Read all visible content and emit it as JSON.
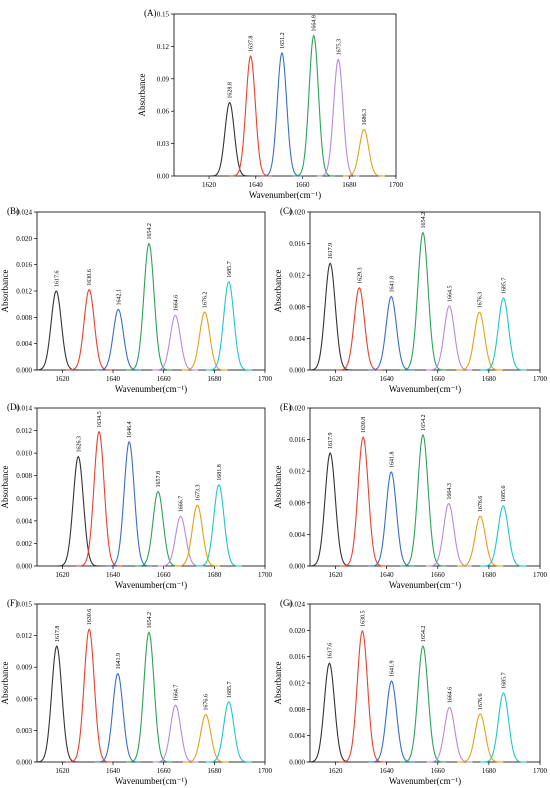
{
  "chart_data": [
    {
      "panel": "(A)",
      "type": "line",
      "xlabel": "Wavenumber(cm⁻¹)",
      "ylabel": "Absorbance",
      "xlim": [
        1605,
        1700
      ],
      "ylim": [
        0,
        0.15
      ],
      "xticks": [
        1620,
        1640,
        1660,
        1680,
        1700
      ],
      "yticks": [
        0,
        0.03,
        0.06,
        0.09,
        0.12,
        0.15
      ],
      "ytick_labels": [
        "0.00",
        "0.03",
        "0.06",
        "0.09",
        "0.12",
        "0.15"
      ],
      "peaks": [
        {
          "label": "1628.8",
          "center": 1628.8,
          "height": 0.068,
          "color": "#333333"
        },
        {
          "label": "1637.8",
          "center": 1637.8,
          "height": 0.111,
          "color": "#e8412f"
        },
        {
          "label": "1651.2",
          "center": 1651.2,
          "height": 0.114,
          "color": "#3a6fc4"
        },
        {
          "label": "1664.8",
          "center": 1664.8,
          "height": 0.13,
          "color": "#2ea25a"
        },
        {
          "label": "1675.3",
          "center": 1675.3,
          "height": 0.108,
          "color": "#b98ad8"
        },
        {
          "label": "1686.3",
          "center": 1686.3,
          "height": 0.043,
          "color": "#e2a218"
        }
      ]
    },
    {
      "panel": "(B)",
      "type": "line",
      "xlabel": "Wavenumber(cm⁻¹)",
      "ylabel": "Absorbance",
      "xlim": [
        1610,
        1700
      ],
      "ylim": [
        0,
        0.024
      ],
      "xticks": [
        1620,
        1640,
        1660,
        1680,
        1700
      ],
      "yticks": [
        0,
        0.004,
        0.008,
        0.012,
        0.016,
        0.02,
        0.024
      ],
      "ytick_labels": [
        "0.000",
        "0.004",
        "0.008",
        "0.012",
        "0.016",
        "0.020",
        "0.024"
      ],
      "peaks": [
        {
          "label": "1617.6",
          "center": 1617.6,
          "height": 0.012,
          "color": "#333333"
        },
        {
          "label": "1630.6",
          "center": 1630.6,
          "height": 0.0122,
          "color": "#e8412f"
        },
        {
          "label": "1642.1",
          "center": 1642.1,
          "height": 0.0092,
          "color": "#3a6fc4"
        },
        {
          "label": "1654.2",
          "center": 1654.2,
          "height": 0.0192,
          "color": "#2ea25a"
        },
        {
          "label": "1664.6",
          "center": 1664.6,
          "height": 0.0083,
          "color": "#b98ad8"
        },
        {
          "label": "1676.2",
          "center": 1676.2,
          "height": 0.0088,
          "color": "#e2a218"
        },
        {
          "label": "1685.7",
          "center": 1685.7,
          "height": 0.0134,
          "color": "#22c7c7"
        }
      ]
    },
    {
      "panel": "(C)",
      "type": "line",
      "xlabel": "Wavenumber(cm⁻¹)",
      "ylabel": "Absorbance",
      "xlim": [
        1610,
        1700
      ],
      "ylim": [
        0,
        0.02
      ],
      "xticks": [
        1620,
        1640,
        1660,
        1680,
        1700
      ],
      "yticks": [
        0,
        0.004,
        0.008,
        0.012,
        0.016,
        0.02
      ],
      "ytick_labels": [
        "0.000",
        "0.004",
        "0.008",
        "0.012",
        "0.016",
        "0.020"
      ],
      "peaks": [
        {
          "label": "1617.9",
          "center": 1617.9,
          "height": 0.0135,
          "color": "#333333"
        },
        {
          "label": "1629.3",
          "center": 1629.3,
          "height": 0.0104,
          "color": "#e8412f"
        },
        {
          "label": "1641.8",
          "center": 1641.8,
          "height": 0.0093,
          "color": "#3a6fc4"
        },
        {
          "label": "1654.2",
          "center": 1654.2,
          "height": 0.0174,
          "color": "#2ea25a"
        },
        {
          "label": "1664.5",
          "center": 1664.5,
          "height": 0.0081,
          "color": "#b98ad8"
        },
        {
          "label": "1676.3",
          "center": 1676.3,
          "height": 0.0073,
          "color": "#e2a218"
        },
        {
          "label": "1685.7",
          "center": 1685.7,
          "height": 0.0091,
          "color": "#22c7c7"
        }
      ]
    },
    {
      "panel": "(D)",
      "type": "line",
      "xlabel": "Wavenumber(cm⁻¹)",
      "ylabel": "Absorbance",
      "xlim": [
        1610,
        1700
      ],
      "ylim": [
        0,
        0.014
      ],
      "xticks": [
        1620,
        1640,
        1660,
        1680,
        1700
      ],
      "yticks": [
        0,
        0.002,
        0.004,
        0.006,
        0.008,
        0.01,
        0.012,
        0.014
      ],
      "ytick_labels": [
        "0.000",
        "0.002",
        "0.004",
        "0.006",
        "0.008",
        "0.010",
        "0.012",
        "0.014"
      ],
      "peaks": [
        {
          "label": "1626.3",
          "center": 1626.3,
          "height": 0.0097,
          "color": "#333333"
        },
        {
          "label": "1634.5",
          "center": 1634.5,
          "height": 0.0119,
          "color": "#e8412f"
        },
        {
          "label": "1646.4",
          "center": 1646.4,
          "height": 0.011,
          "color": "#3a6fc4"
        },
        {
          "label": "1657.8",
          "center": 1657.8,
          "height": 0.0066,
          "color": "#2ea25a"
        },
        {
          "label": "1666.7",
          "center": 1666.7,
          "height": 0.0044,
          "color": "#b98ad8"
        },
        {
          "label": "1673.3",
          "center": 1673.3,
          "height": 0.0054,
          "color": "#e2a218"
        },
        {
          "label": "1681.8",
          "center": 1681.8,
          "height": 0.0072,
          "color": "#22c7c7"
        }
      ]
    },
    {
      "panel": "(E)",
      "type": "line",
      "xlabel": "Wavenumber(cm⁻¹)",
      "ylabel": "Absorbance",
      "xlim": [
        1610,
        1700
      ],
      "ylim": [
        0,
        0.02
      ],
      "xticks": [
        1620,
        1640,
        1660,
        1680,
        1700
      ],
      "yticks": [
        0,
        0.004,
        0.008,
        0.012,
        0.016,
        0.02
      ],
      "ytick_labels": [
        "0.000",
        "0.004",
        "0.008",
        "0.012",
        "0.016",
        "0.020"
      ],
      "peaks": [
        {
          "label": "1617.9",
          "center": 1617.9,
          "height": 0.0143,
          "color": "#333333"
        },
        {
          "label": "1630.8",
          "center": 1630.8,
          "height": 0.0163,
          "color": "#e8412f"
        },
        {
          "label": "1641.8",
          "center": 1641.8,
          "height": 0.0119,
          "color": "#3a6fc4"
        },
        {
          "label": "1654.2",
          "center": 1654.2,
          "height": 0.0166,
          "color": "#2ea25a"
        },
        {
          "label": "1664.3",
          "center": 1664.3,
          "height": 0.0079,
          "color": "#b98ad8"
        },
        {
          "label": "1676.6",
          "center": 1676.6,
          "height": 0.0063,
          "color": "#e2a218"
        },
        {
          "label": "1685.6",
          "center": 1685.6,
          "height": 0.0076,
          "color": "#22c7c7"
        }
      ]
    },
    {
      "panel": "(F)",
      "type": "line",
      "xlabel": "Wavenumber(cm⁻¹)",
      "ylabel": "Absorbance",
      "xlim": [
        1610,
        1700
      ],
      "ylim": [
        0,
        0.015
      ],
      "xticks": [
        1620,
        1640,
        1660,
        1680,
        1700
      ],
      "yticks": [
        0,
        0.003,
        0.006,
        0.009,
        0.012,
        0.015
      ],
      "ytick_labels": [
        "0.000",
        "0.003",
        "0.006",
        "0.009",
        "0.012",
        "0.015"
      ],
      "peaks": [
        {
          "label": "1617.8",
          "center": 1617.8,
          "height": 0.011,
          "color": "#333333"
        },
        {
          "label": "1630.6",
          "center": 1630.6,
          "height": 0.0126,
          "color": "#e8412f"
        },
        {
          "label": "1641.9",
          "center": 1641.9,
          "height": 0.0084,
          "color": "#3a6fc4"
        },
        {
          "label": "1654.2",
          "center": 1654.2,
          "height": 0.0123,
          "color": "#2ea25a"
        },
        {
          "label": "1664.7",
          "center": 1664.7,
          "height": 0.0054,
          "color": "#b98ad8"
        },
        {
          "label": "1676.6",
          "center": 1676.6,
          "height": 0.0045,
          "color": "#e2a218"
        },
        {
          "label": "1685.7",
          "center": 1685.7,
          "height": 0.0057,
          "color": "#22c7c7"
        }
      ]
    },
    {
      "panel": "(G)",
      "type": "line",
      "xlabel": "Wavenumber(cm⁻¹)",
      "ylabel": "Absorbance",
      "xlim": [
        1610,
        1700
      ],
      "ylim": [
        0,
        0.024
      ],
      "xticks": [
        1620,
        1640,
        1660,
        1680,
        1700
      ],
      "yticks": [
        0,
        0.004,
        0.008,
        0.012,
        0.016,
        0.02,
        0.024
      ],
      "ytick_labels": [
        "0.000",
        "0.004",
        "0.008",
        "0.012",
        "0.016",
        "0.020",
        "0.024"
      ],
      "peaks": [
        {
          "label": "1617.6",
          "center": 1617.6,
          "height": 0.015,
          "color": "#333333"
        },
        {
          "label": "1630.5",
          "center": 1630.5,
          "height": 0.0199,
          "color": "#e8412f"
        },
        {
          "label": "1641.9",
          "center": 1641.9,
          "height": 0.0123,
          "color": "#3a6fc4"
        },
        {
          "label": "1654.2",
          "center": 1654.2,
          "height": 0.0176,
          "color": "#2ea25a"
        },
        {
          "label": "1664.6",
          "center": 1664.6,
          "height": 0.0083,
          "color": "#b98ad8"
        },
        {
          "label": "1676.6",
          "center": 1676.6,
          "height": 0.0073,
          "color": "#e2a218"
        },
        {
          "label": "1685.7",
          "center": 1685.7,
          "height": 0.0105,
          "color": "#22c7c7"
        }
      ]
    }
  ]
}
